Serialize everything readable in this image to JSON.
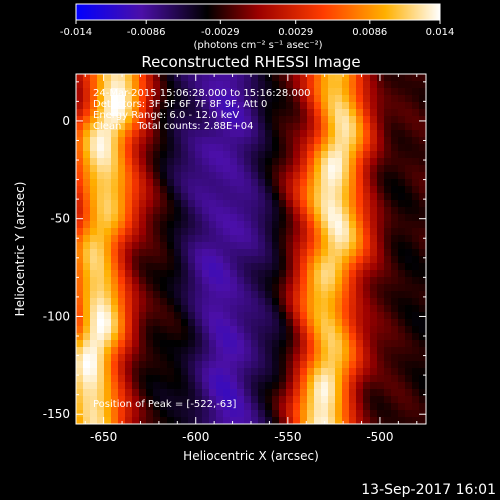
{
  "window": {
    "date_stamp": "13-Sep-2017 16:01"
  },
  "colorbar": {
    "tick_labels": [
      "-0.014",
      "-0.0086",
      "-0.0029",
      "0.0029",
      "0.0086",
      "0.014"
    ],
    "tick_values": [
      -0.014,
      -0.0086,
      -0.0029,
      0.0029,
      0.0086,
      0.014
    ],
    "range": [
      -0.014,
      0.014
    ],
    "units_label": "(photons cm⁻² s⁻¹ asec⁻²)",
    "colormap": [
      "#0000ff",
      "#4b0fa8",
      "#000000",
      "#b00000",
      "#ff4000",
      "#ffb000",
      "#ffffff"
    ]
  },
  "annotations": {
    "time_range": "24-Mar-2015 15:06:28.000 to 15:16:28.000",
    "detectors": "Detectors: 3F 5F 6F 7F 8F 9F, Att 0",
    "energy_range": "Energy Range: 6.0 - 12.0 keV",
    "clean_counts": "Clean     Total counts: 2.88E+04",
    "peak_position": "Position of Peak = [-522,-63]"
  },
  "chart_data": {
    "type": "heatmap",
    "title": "Reconstructed RHESSI Image",
    "xlabel": "Heliocentric X (arcsec)",
    "ylabel": "Heliocentric Y (arcsec)",
    "xlim": [
      -665,
      -475
    ],
    "ylim": [
      -155,
      24
    ],
    "x_ticks": [
      -650,
      -600,
      -550,
      -500
    ],
    "x_tick_labels": [
      "-650",
      "-600",
      "-550",
      "-500"
    ],
    "y_ticks": [
      0,
      -50,
      -100,
      -150
    ],
    "y_tick_labels": [
      "0",
      "-50",
      "-100",
      "-150"
    ],
    "value_range": [
      -0.014,
      0.014
    ],
    "bands": [
      {
        "kind": "bright",
        "x_at_top": -645,
        "x_at_bottom": -658,
        "peak": 0.014
      },
      {
        "kind": "dark",
        "x_at_top": -588,
        "x_at_bottom": -580,
        "peak": -0.009
      },
      {
        "kind": "bright",
        "x_at_top": -522,
        "x_at_bottom": -530,
        "peak": 0.014
      }
    ],
    "peak_position": [
      -522,
      -63
    ]
  }
}
